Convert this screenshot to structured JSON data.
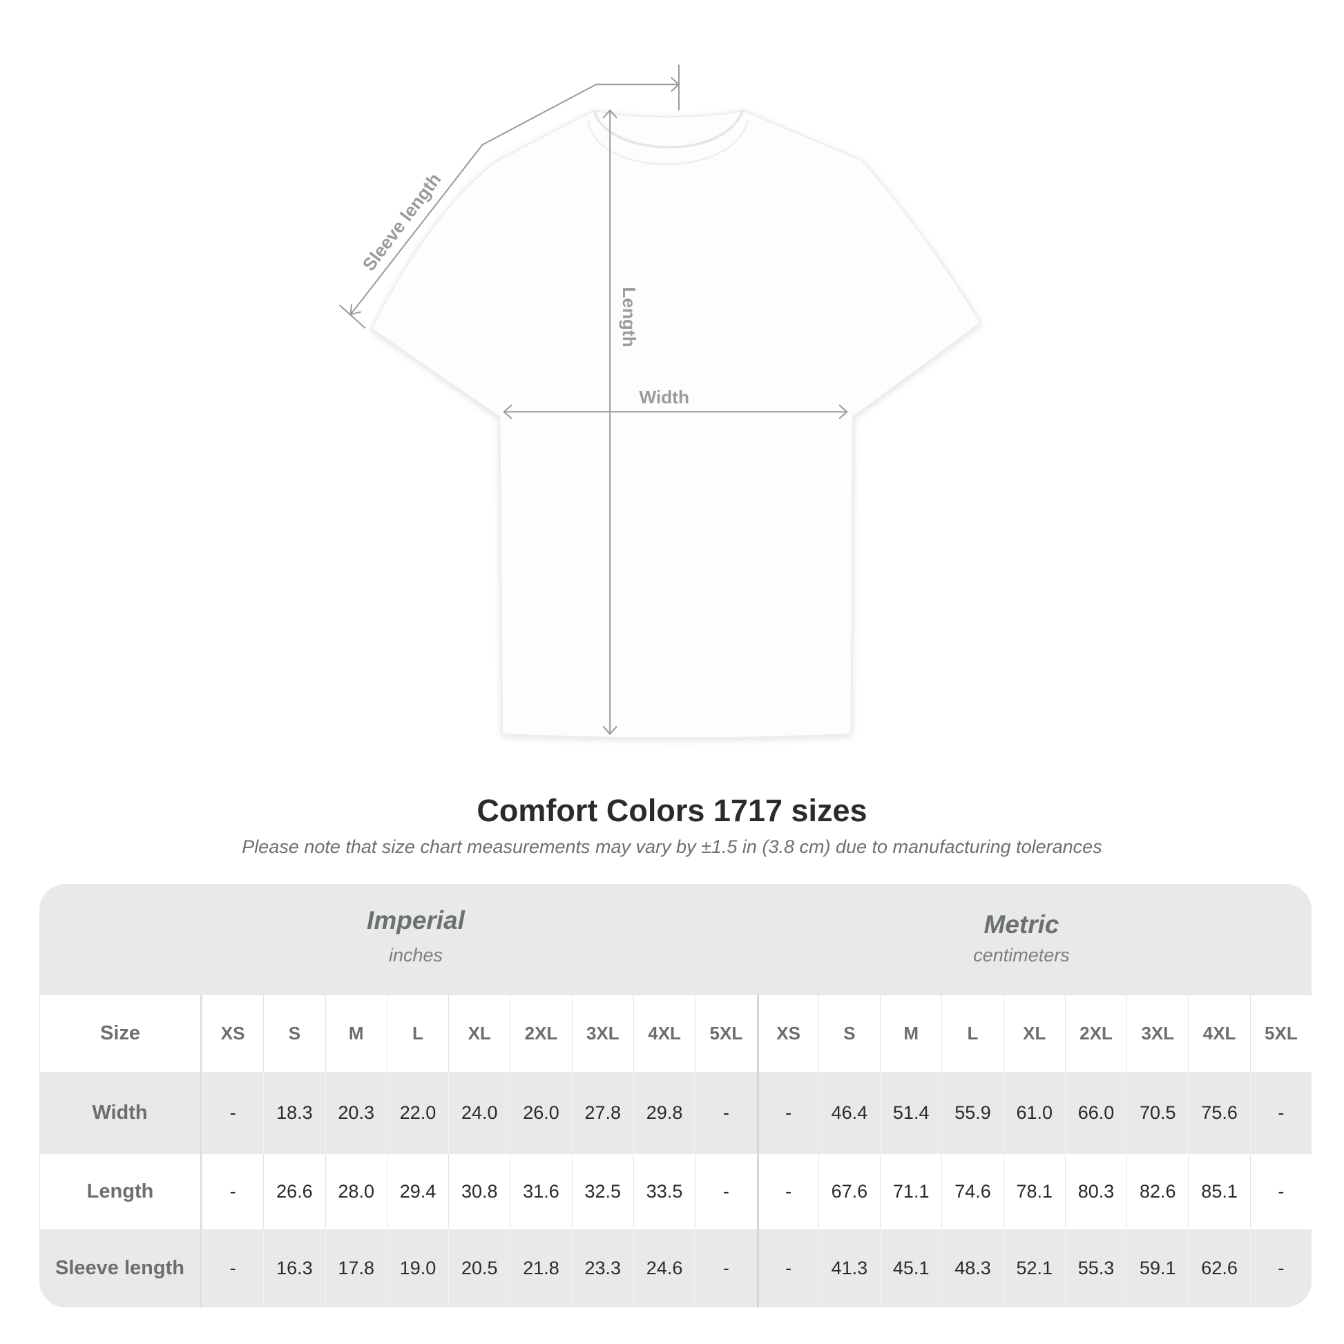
{
  "diagram": {
    "sleeve_label": "Sleeve length",
    "length_label": "Length",
    "width_label": "Width",
    "line_color": "#9a9a9a"
  },
  "title": "Comfort Colors 1717 sizes",
  "note": "Please note that size chart measurements may vary by ±1.5 in (3.8 cm) due to manufacturing tolerances",
  "table": {
    "imperial": {
      "title": "Imperial",
      "unit": "inches"
    },
    "metric": {
      "title": "Metric",
      "unit": "centimeters"
    },
    "size_label": "Size",
    "sizes": [
      "XS",
      "S",
      "M",
      "L",
      "XL",
      "2XL",
      "3XL",
      "4XL",
      "5XL"
    ],
    "rows": [
      {
        "label": "Width",
        "imperial": [
          "-",
          "18.3",
          "20.3",
          "22.0",
          "24.0",
          "26.0",
          "27.8",
          "29.8",
          "-"
        ],
        "metric": [
          "-",
          "46.4",
          "51.4",
          "55.9",
          "61.0",
          "66.0",
          "70.5",
          "75.6",
          "-"
        ]
      },
      {
        "label": "Length",
        "imperial": [
          "-",
          "26.6",
          "28.0",
          "29.4",
          "30.8",
          "31.6",
          "32.5",
          "33.5",
          "-"
        ],
        "metric": [
          "-",
          "67.6",
          "71.1",
          "74.6",
          "78.1",
          "80.3",
          "82.6",
          "85.1",
          "-"
        ]
      },
      {
        "label": "Sleeve length",
        "imperial": [
          "-",
          "16.3",
          "17.8",
          "19.0",
          "20.5",
          "21.8",
          "23.3",
          "24.6",
          "-"
        ],
        "metric": [
          "-",
          "41.3",
          "45.1",
          "48.3",
          "52.1",
          "55.3",
          "59.1",
          "62.6",
          "-"
        ]
      }
    ]
  }
}
